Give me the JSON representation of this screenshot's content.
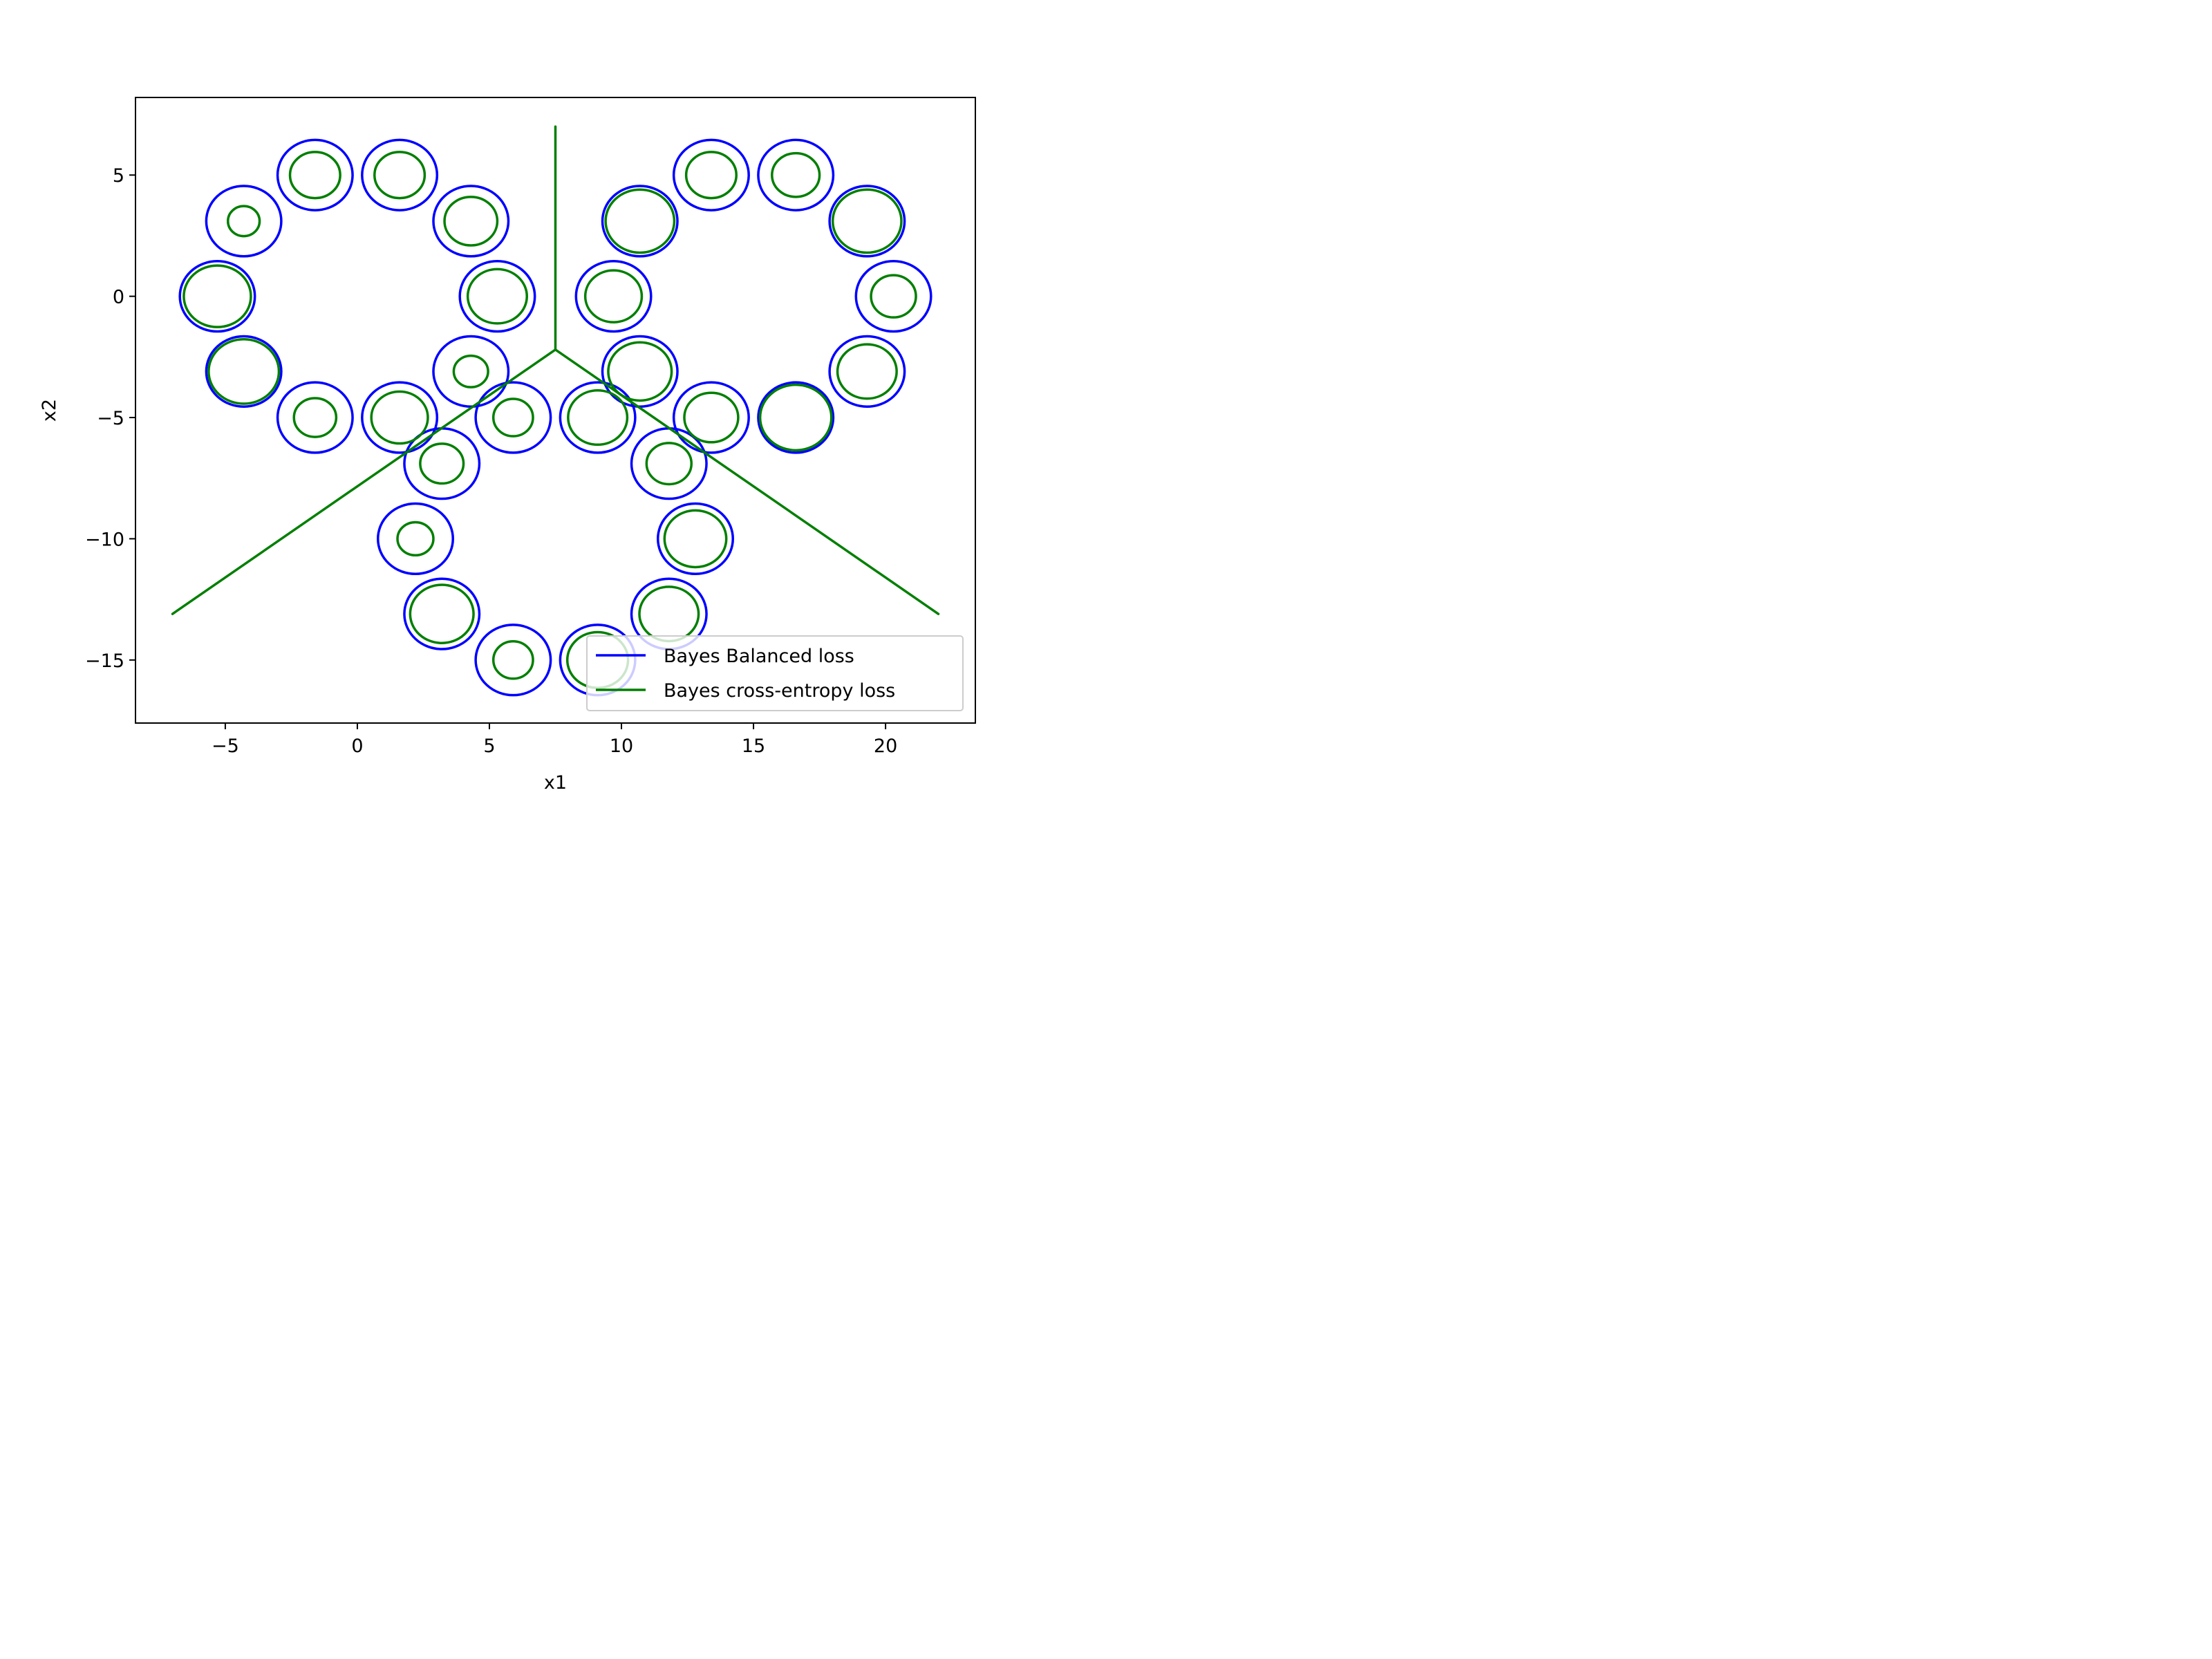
{
  "chart_data": {
    "type": "line",
    "xlabel": "x1",
    "ylabel": "x2",
    "xlim": [
      -8.4,
      23.4
    ],
    "ylim": [
      -17.6,
      8.2
    ],
    "xticks": [
      -5,
      0,
      5,
      10,
      15,
      20
    ],
    "yticks": [
      5,
      0,
      -5,
      -10,
      -15
    ],
    "xtick_labels": [
      "−5",
      "0",
      "5",
      "10",
      "15",
      "20"
    ],
    "ytick_labels": [
      "5",
      "0",
      "−5",
      "−10",
      "−15"
    ],
    "grid": false,
    "legend_position": "lower-right",
    "series": [
      {
        "name": "Bayes Balanced loss",
        "color": "#0000ff",
        "contours": [
          {
            "cx": -1.6,
            "cy": 5.0,
            "rx": 1.42,
            "ry": 1.45
          },
          {
            "cx": 1.6,
            "cy": 5.0,
            "rx": 1.42,
            "ry": 1.45
          },
          {
            "cx": -4.3,
            "cy": 3.1,
            "rx": 1.42,
            "ry": 1.45
          },
          {
            "cx": 4.3,
            "cy": 3.1,
            "rx": 1.42,
            "ry": 1.45
          },
          {
            "cx": -5.3,
            "cy": 0.0,
            "rx": 1.42,
            "ry": 1.45
          },
          {
            "cx": 5.3,
            "cy": 0.0,
            "rx": 1.42,
            "ry": 1.45
          },
          {
            "cx": -4.3,
            "cy": -3.1,
            "rx": 1.42,
            "ry": 1.45
          },
          {
            "cx": 4.3,
            "cy": -3.1,
            "rx": 1.42,
            "ry": 1.45
          },
          {
            "cx": -1.6,
            "cy": -5.0,
            "rx": 1.42,
            "ry": 1.45
          },
          {
            "cx": 1.6,
            "cy": -5.0,
            "rx": 1.42,
            "ry": 1.45
          },
          {
            "cx": 13.4,
            "cy": 5.0,
            "rx": 1.42,
            "ry": 1.45
          },
          {
            "cx": 16.6,
            "cy": 5.0,
            "rx": 1.42,
            "ry": 1.45
          },
          {
            "cx": 10.7,
            "cy": 3.1,
            "rx": 1.42,
            "ry": 1.45
          },
          {
            "cx": 19.3,
            "cy": 3.1,
            "rx": 1.42,
            "ry": 1.45
          },
          {
            "cx": 9.7,
            "cy": 0.0,
            "rx": 1.42,
            "ry": 1.45
          },
          {
            "cx": 20.3,
            "cy": 0.0,
            "rx": 1.42,
            "ry": 1.45
          },
          {
            "cx": 10.7,
            "cy": -3.1,
            "rx": 1.42,
            "ry": 1.45
          },
          {
            "cx": 19.3,
            "cy": -3.1,
            "rx": 1.42,
            "ry": 1.45
          },
          {
            "cx": 13.4,
            "cy": -5.0,
            "rx": 1.42,
            "ry": 1.45
          },
          {
            "cx": 16.6,
            "cy": -5.0,
            "rx": 1.42,
            "ry": 1.45
          },
          {
            "cx": 5.9,
            "cy": -5.0,
            "rx": 1.42,
            "ry": 1.45
          },
          {
            "cx": 9.1,
            "cy": -5.0,
            "rx": 1.42,
            "ry": 1.45
          },
          {
            "cx": 3.2,
            "cy": -6.9,
            "rx": 1.42,
            "ry": 1.45
          },
          {
            "cx": 11.8,
            "cy": -6.9,
            "rx": 1.42,
            "ry": 1.45
          },
          {
            "cx": 2.2,
            "cy": -10.0,
            "rx": 1.42,
            "ry": 1.45
          },
          {
            "cx": 12.8,
            "cy": -10.0,
            "rx": 1.42,
            "ry": 1.45
          },
          {
            "cx": 3.2,
            "cy": -13.1,
            "rx": 1.42,
            "ry": 1.45
          },
          {
            "cx": 11.8,
            "cy": -13.1,
            "rx": 1.42,
            "ry": 1.45
          },
          {
            "cx": 5.9,
            "cy": -15.0,
            "rx": 1.42,
            "ry": 1.45
          },
          {
            "cx": 9.1,
            "cy": -15.0,
            "rx": 1.42,
            "ry": 1.45
          }
        ]
      },
      {
        "name": "Bayes cross-entropy loss",
        "color": "#007f00",
        "contours": [
          {
            "cx": -1.6,
            "cy": 5.0,
            "rx": 0.95,
            "ry": 0.95
          },
          {
            "cx": 1.6,
            "cy": 5.0,
            "rx": 0.95,
            "ry": 0.95
          },
          {
            "cx": -4.3,
            "cy": 3.1,
            "rx": 0.6,
            "ry": 0.62
          },
          {
            "cx": 4.3,
            "cy": 3.1,
            "rx": 1.0,
            "ry": 1.0
          },
          {
            "cx": -5.3,
            "cy": 0.0,
            "rx": 1.27,
            "ry": 1.27
          },
          {
            "cx": 5.3,
            "cy": 0.0,
            "rx": 1.12,
            "ry": 1.12
          },
          {
            "cx": -4.3,
            "cy": -3.1,
            "rx": 1.33,
            "ry": 1.33
          },
          {
            "cx": 4.3,
            "cy": -3.1,
            "rx": 0.65,
            "ry": 0.65
          },
          {
            "cx": -1.6,
            "cy": -5.0,
            "rx": 0.8,
            "ry": 0.8
          },
          {
            "cx": 1.6,
            "cy": -5.0,
            "rx": 1.07,
            "ry": 1.07
          },
          {
            "cx": 13.4,
            "cy": 5.0,
            "rx": 0.95,
            "ry": 0.95
          },
          {
            "cx": 16.6,
            "cy": 5.0,
            "rx": 0.9,
            "ry": 0.9
          },
          {
            "cx": 10.7,
            "cy": 3.1,
            "rx": 1.3,
            "ry": 1.3
          },
          {
            "cx": 19.3,
            "cy": 3.1,
            "rx": 1.3,
            "ry": 1.3
          },
          {
            "cx": 9.7,
            "cy": 0.0,
            "rx": 1.07,
            "ry": 1.07
          },
          {
            "cx": 20.3,
            "cy": 0.0,
            "rx": 0.85,
            "ry": 0.87
          },
          {
            "cx": 10.7,
            "cy": -3.1,
            "rx": 1.2,
            "ry": 1.2
          },
          {
            "cx": 19.3,
            "cy": -3.1,
            "rx": 1.12,
            "ry": 1.12
          },
          {
            "cx": 13.4,
            "cy": -5.0,
            "rx": 1.02,
            "ry": 1.02
          },
          {
            "cx": 16.6,
            "cy": -5.0,
            "rx": 1.35,
            "ry": 1.35
          },
          {
            "cx": 5.9,
            "cy": -5.0,
            "rx": 0.75,
            "ry": 0.77
          },
          {
            "cx": 9.1,
            "cy": -5.0,
            "rx": 1.12,
            "ry": 1.12
          },
          {
            "cx": 3.2,
            "cy": -6.9,
            "rx": 0.82,
            "ry": 0.82
          },
          {
            "cx": 11.8,
            "cy": -6.9,
            "rx": 0.85,
            "ry": 0.85
          },
          {
            "cx": 2.2,
            "cy": -10.0,
            "rx": 0.68,
            "ry": 0.68
          },
          {
            "cx": 12.8,
            "cy": -10.0,
            "rx": 1.17,
            "ry": 1.17
          },
          {
            "cx": 3.2,
            "cy": -13.1,
            "rx": 1.2,
            "ry": 1.2
          },
          {
            "cx": 11.8,
            "cy": -13.1,
            "rx": 1.12,
            "ry": 1.12
          },
          {
            "cx": 5.9,
            "cy": -15.0,
            "rx": 0.75,
            "ry": 0.77
          },
          {
            "cx": 9.1,
            "cy": -15.0,
            "rx": 1.15,
            "ry": 1.15
          }
        ],
        "boundary_lines": [
          [
            [
              7.5,
              7.0
            ],
            [
              7.5,
              -2.2
            ]
          ],
          [
            [
              7.5,
              -2.2
            ],
            [
              -7.0,
              -13.1
            ]
          ],
          [
            [
              7.5,
              -2.2
            ],
            [
              22.0,
              -13.1
            ]
          ]
        ]
      }
    ]
  }
}
